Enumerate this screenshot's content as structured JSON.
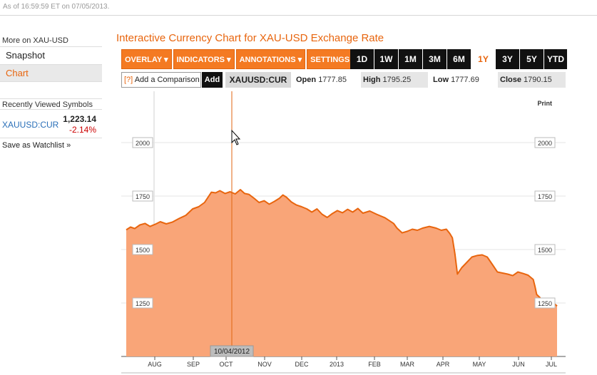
{
  "header": {
    "timestamp": "As of 16:59:59 ET on 07/05/2013."
  },
  "sidebar": {
    "heading": "More on XAU-USD",
    "nav": [
      {
        "label": "Snapshot",
        "active": false
      },
      {
        "label": "Chart",
        "active": true
      }
    ],
    "recent_heading": "Recently Viewed Symbols",
    "recent": [
      {
        "symbol": "XAUUSD:CUR",
        "price": "1,223.14",
        "change": "-2.14%"
      }
    ],
    "watchlist_label": "Save as Watchlist »"
  },
  "chart_panel": {
    "title": "Interactive Currency Chart for XAU-USD Exchange Rate",
    "menus": [
      "OVERLAY ▾",
      "INDICATORS ▾",
      "ANNOTATIONS ▾",
      "SETTINGS ▾"
    ],
    "ranges": [
      "1D",
      "1W",
      "1M",
      "3M",
      "6M",
      "1Y",
      "3Y",
      "5Y",
      "YTD"
    ],
    "active_range": "1Y",
    "compare_q": "[?]",
    "compare_label": "Add a Comparison",
    "add_label": "Add",
    "symbol": "XAUUSD:CUR",
    "open_label": "Open",
    "open": "1777.85",
    "high_label": "High",
    "high": "1795.25",
    "low_label": "Low",
    "low": "1777.69",
    "close_label": "Close",
    "close": "1790.15",
    "print_label": "Print",
    "cursor_date": "10/04/2012"
  },
  "colors": {
    "accent": "#e8650e",
    "button": "#f47a22",
    "area_fill": "#f9a578",
    "line": "#e8650e",
    "negative": "#cc0000",
    "link": "#2a6fb8"
  },
  "chart_data": {
    "type": "area",
    "title": "",
    "xlabel": "",
    "ylabel": "",
    "ylim": [
      1000,
      2200
    ],
    "yticks": [
      1250,
      1500,
      1750,
      2000
    ],
    "xtick_labels": [
      "AUG",
      "SEP",
      "OCT",
      "NOV",
      "DEC",
      "2013",
      "FEB",
      "MAR",
      "APR",
      "MAY",
      "JUN",
      "JUL"
    ],
    "grid": true,
    "series": [
      {
        "values": [
          [
            0.0,
            1592
          ],
          [
            0.5,
            1605
          ],
          [
            1.0,
            1598
          ],
          [
            1.6,
            1615
          ],
          [
            2.2,
            1622
          ],
          [
            2.8,
            1608
          ],
          [
            3.4,
            1618
          ],
          [
            4.0,
            1630
          ],
          [
            4.7,
            1620
          ],
          [
            5.4,
            1628
          ],
          [
            6.2,
            1645
          ],
          [
            7.0,
            1660
          ],
          [
            7.8,
            1690
          ],
          [
            8.5,
            1700
          ],
          [
            9.2,
            1720
          ],
          [
            10.0,
            1768
          ],
          [
            10.5,
            1765
          ],
          [
            11.0,
            1775
          ],
          [
            11.6,
            1762
          ],
          [
            12.2,
            1770
          ],
          [
            12.8,
            1760
          ],
          [
            13.4,
            1780
          ],
          [
            13.9,
            1762
          ],
          [
            14.4,
            1758
          ],
          [
            15.0,
            1740
          ],
          [
            15.6,
            1720
          ],
          [
            16.2,
            1728
          ],
          [
            16.8,
            1712
          ],
          [
            17.4,
            1725
          ],
          [
            18.0,
            1740
          ],
          [
            18.4,
            1755
          ],
          [
            18.8,
            1745
          ],
          [
            19.4,
            1722
          ],
          [
            20.0,
            1708
          ],
          [
            20.6,
            1700
          ],
          [
            21.2,
            1690
          ],
          [
            21.8,
            1675
          ],
          [
            22.4,
            1690
          ],
          [
            23.0,
            1665
          ],
          [
            23.6,
            1650
          ],
          [
            24.2,
            1668
          ],
          [
            24.8,
            1682
          ],
          [
            25.4,
            1672
          ],
          [
            26.0,
            1688
          ],
          [
            26.6,
            1675
          ],
          [
            27.2,
            1692
          ],
          [
            27.8,
            1670
          ],
          [
            28.6,
            1680
          ],
          [
            29.4,
            1665
          ],
          [
            30.4,
            1648
          ],
          [
            31.4,
            1622
          ],
          [
            31.8,
            1600
          ],
          [
            32.4,
            1578
          ],
          [
            33.0,
            1585
          ],
          [
            33.6,
            1595
          ],
          [
            34.2,
            1590
          ],
          [
            34.8,
            1600
          ],
          [
            35.6,
            1608
          ],
          [
            36.4,
            1600
          ],
          [
            37.0,
            1590
          ],
          [
            37.6,
            1595
          ],
          [
            38.0,
            1575
          ],
          [
            38.3,
            1555
          ],
          [
            38.6,
            1480
          ],
          [
            38.9,
            1385
          ],
          [
            39.4,
            1415
          ],
          [
            40.0,
            1440
          ],
          [
            40.6,
            1465
          ],
          [
            41.2,
            1472
          ],
          [
            41.8,
            1475
          ],
          [
            42.4,
            1465
          ],
          [
            43.0,
            1430
          ],
          [
            43.6,
            1395
          ],
          [
            44.2,
            1390
          ],
          [
            44.8,
            1385
          ],
          [
            45.4,
            1378
          ],
          [
            46.0,
            1395
          ],
          [
            46.6,
            1388
          ],
          [
            47.2,
            1380
          ],
          [
            47.8,
            1360
          ],
          [
            48.0,
            1328
          ],
          [
            48.2,
            1290
          ],
          [
            48.6,
            1275
          ],
          [
            49.0,
            1230
          ],
          [
            49.4,
            1255
          ],
          [
            49.8,
            1270
          ],
          [
            50.2,
            1250
          ],
          [
            50.6,
            1236
          ]
        ]
      }
    ]
  }
}
